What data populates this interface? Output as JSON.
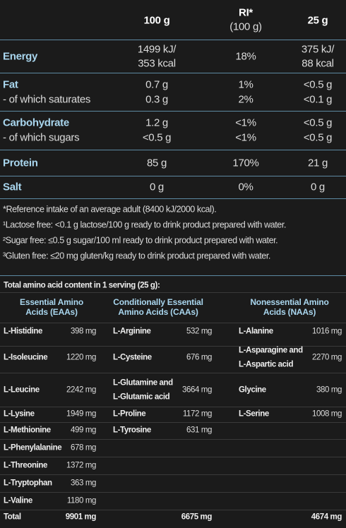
{
  "nutrition": {
    "header": {
      "per100": "100 g",
      "ri": "RI*",
      "ri_unit": "(100 g)",
      "per25": "25 g"
    },
    "rows": [
      {
        "label": "Energy",
        "per100": [
          "1499 kJ/",
          "353 kcal"
        ],
        "ri": "18%",
        "per25": [
          "375 kJ/",
          "88 kcal"
        ]
      },
      {
        "label": "Fat",
        "per100": "0.7 g",
        "ri": "1%",
        "per25": "<0.5 g"
      },
      {
        "label": "- of which saturates",
        "per100": "0.3 g",
        "ri": "2%",
        "per25": "<0.1 g"
      },
      {
        "label": "Carbohydrate",
        "per100": "1.2 g",
        "ri": "<1%",
        "per25": "<0.5 g"
      },
      {
        "label": "- of which sugars",
        "per100": "<0.5 g",
        "ri": "<1%",
        "per25": "<0.5 g"
      },
      {
        "label": "Protein",
        "per100": "85 g",
        "ri": "170%",
        "per25": "21 g"
      },
      {
        "label": "Salt",
        "per100": "0 g",
        "ri": "0%",
        "per25": "0 g"
      }
    ]
  },
  "footnotes": [
    "*Reference intake of an average adult (8400 kJ/2000 kcal).",
    "¹Lactose free: <0.1 g lactose/100 g ready to drink product prepared with water.",
    "²Sugar free: ≤0.5 g sugar/100 ml ready to drink product prepared with water.",
    "³Gluten free: ≤20 mg gluten/kg ready to drink product prepared with water."
  ],
  "amino": {
    "title": "Total amino acid content in 1 serving (25 g):",
    "columns": [
      [
        "Essential Amino",
        "Acids (EAAs)"
      ],
      [
        "Conditionally Essential",
        "Amino Acids (CAAs)"
      ],
      [
        "Nonessential Amino",
        "Acids (NAAs)"
      ]
    ],
    "eaa": [
      [
        "L-Histidine",
        "398 mg"
      ],
      [
        "L-Isoleucine",
        "1220 mg"
      ],
      [
        "L-Leucine",
        "2242 mg"
      ],
      [
        "L-Lysine",
        "1949 mg"
      ],
      [
        "L-Methionine",
        "499 mg"
      ],
      [
        "L-Phenylalanine",
        "678 mg"
      ],
      [
        "L-Threonine",
        "1372 mg"
      ],
      [
        "L-Tryptophan",
        "363 mg"
      ],
      [
        "L-Valine",
        "1180 mg"
      ]
    ],
    "caa": [
      [
        [
          "L-Arginine"
        ],
        "532 mg"
      ],
      [
        [
          "L-Cysteine"
        ],
        "676 mg"
      ],
      [
        [
          "L-Glutamine and",
          "L-Glutamic acid"
        ],
        "3664 mg"
      ],
      [
        [
          "L-Proline"
        ],
        "1172 mg"
      ],
      [
        [
          "L-Tyrosine"
        ],
        "631 mg"
      ]
    ],
    "naa": [
      [
        [
          "L-Alanine"
        ],
        "1016 mg"
      ],
      [
        [
          "L-Asparagine and",
          "L-Aspartic acid"
        ],
        "2270 mg"
      ],
      [
        [
          "Glycine"
        ],
        "380 mg"
      ],
      [
        [
          "L-Serine"
        ],
        "1008 mg"
      ]
    ],
    "total": {
      "label": "Total",
      "eaa": "9901 mg",
      "caa": "6675 mg",
      "naa": "4674 mg"
    }
  }
}
